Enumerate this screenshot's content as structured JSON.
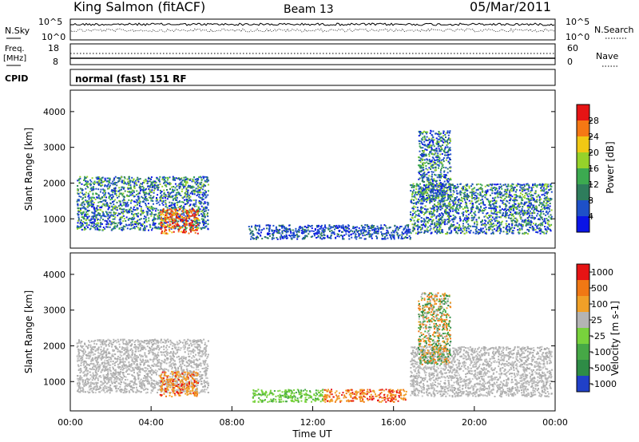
{
  "header": {
    "station": "King Salmon (fitACF)",
    "beam": "Beam 13",
    "date": "05/Mar/2011"
  },
  "noise_panel": {
    "left_label": "N.Sky",
    "right_label": "N.Search",
    "left_ticks": [
      "10^5",
      "10^0"
    ],
    "right_ticks": [
      "10^5",
      "10^0"
    ]
  },
  "freq_panel": {
    "left_label_1": "Freq.",
    "left_label_2": "[MHz]",
    "right_label": "Nave",
    "left_ticks": [
      "18",
      "8"
    ],
    "right_ticks": [
      "60",
      "0"
    ]
  },
  "cpid_panel": {
    "label": "CPID",
    "text": "normal (fast) 151 RF"
  },
  "chart_data": [
    {
      "type": "heatmap",
      "title": "",
      "xlabel": "",
      "ylabel": "Slant Range [km]",
      "xlim_hours": [
        0,
        24
      ],
      "ylim_km": [
        180,
        4600
      ],
      "yticks": [
        "1000",
        "2000",
        "3000",
        "4000"
      ],
      "colorbar": {
        "label": "Power [dB]",
        "ticks": [
          "4",
          "8",
          "12",
          "16",
          "20",
          "24",
          "28"
        ],
        "colors": [
          "#0a14e6",
          "#1e50c8",
          "#2e7d5c",
          "#3caa50",
          "#96d22a",
          "#f0c814",
          "#f57814",
          "#e61414"
        ]
      },
      "echo_regions": [
        {
          "t_start": 0.3,
          "t_end": 6.8,
          "range_low_km": 700,
          "range_high_km": 2200,
          "level": "moderate"
        },
        {
          "t_start": 4.4,
          "t_end": 6.3,
          "range_low_km": 600,
          "range_high_km": 1300,
          "level": "strong"
        },
        {
          "t_start": 8.8,
          "t_end": 16.8,
          "range_low_km": 450,
          "range_high_km": 850,
          "level": "weak"
        },
        {
          "t_start": 16.8,
          "t_end": 23.8,
          "range_low_km": 600,
          "range_high_km": 2000,
          "level": "moderate"
        },
        {
          "t_start": 17.2,
          "t_end": 18.8,
          "range_low_km": 1500,
          "range_high_km": 3500,
          "level": "moderate"
        }
      ]
    },
    {
      "type": "heatmap",
      "title": "",
      "xlabel": "Time UT",
      "ylabel": "Slant Range [km]",
      "xlim_hours": [
        0,
        24
      ],
      "ylim_km": [
        180,
        4600
      ],
      "yticks": [
        "1000",
        "2000",
        "3000",
        "4000"
      ],
      "xticks": [
        "00:00",
        "04:00",
        "08:00",
        "12:00",
        "16:00",
        "20:00",
        "00:00"
      ],
      "colorbar": {
        "label": "Velocity [m s-1]",
        "ticks": [
          "1000",
          "500",
          "100",
          "25",
          "-25",
          "-100",
          "-500",
          "-1000"
        ],
        "colors": [
          "#2040c8",
          "#2e8c46",
          "#46a846",
          "#78d23c",
          "#b4b4b4",
          "#f0a028",
          "#f07814",
          "#e61414"
        ]
      },
      "echo_regions": [
        {
          "t_start": 0.3,
          "t_end": 6.8,
          "range_low_km": 700,
          "range_high_km": 2200,
          "class": "low-velocity grey"
        },
        {
          "t_start": 4.4,
          "t_end": 6.3,
          "range_low_km": 600,
          "range_high_km": 1300,
          "class": "negative orange"
        },
        {
          "t_start": 9.0,
          "t_end": 12.5,
          "range_low_km": 450,
          "range_high_km": 800,
          "class": "positive green"
        },
        {
          "t_start": 12.5,
          "t_end": 16.6,
          "range_low_km": 450,
          "range_high_km": 800,
          "class": "negative orange"
        },
        {
          "t_start": 16.8,
          "t_end": 23.8,
          "range_low_km": 600,
          "range_high_km": 2000,
          "class": "low-velocity grey"
        },
        {
          "t_start": 17.2,
          "t_end": 18.8,
          "range_low_km": 1500,
          "range_high_km": 3500,
          "class": "mixed orange/green"
        }
      ]
    }
  ]
}
